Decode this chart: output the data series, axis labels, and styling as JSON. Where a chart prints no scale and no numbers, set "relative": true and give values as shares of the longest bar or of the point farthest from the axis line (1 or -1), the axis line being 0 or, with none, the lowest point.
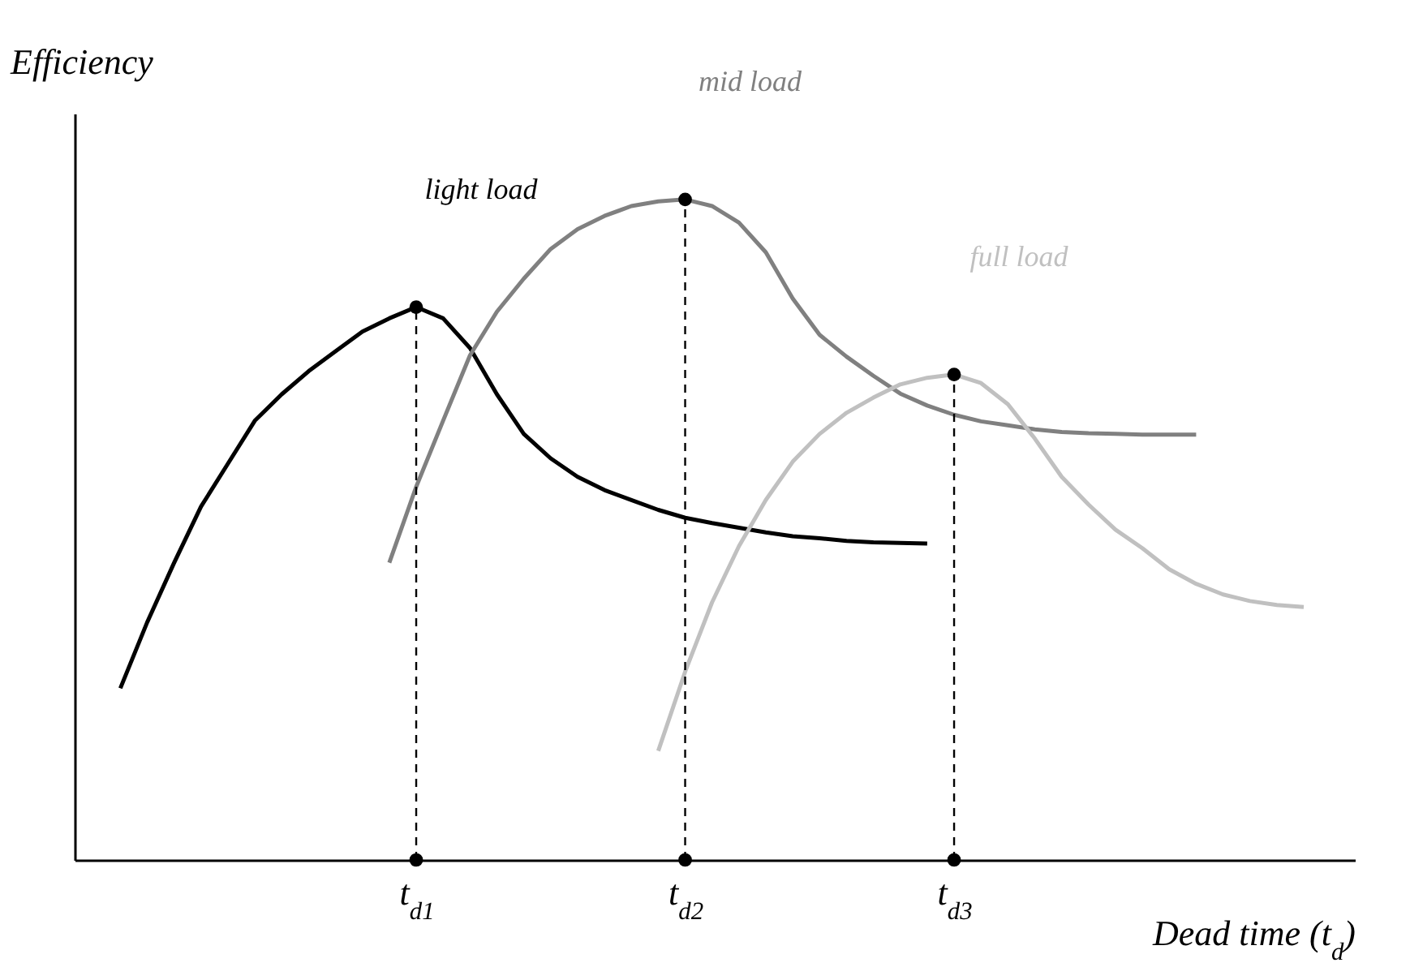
{
  "chart_data": {
    "type": "line",
    "relative": true,
    "xlabel": "Dead time (t$_{d}$)",
    "ylabel": "Efficiency",
    "categories": [
      null,
      null,
      null,
      null,
      null,
      null,
      null,
      null,
      null,
      null,
      null,
      null,
      "t$_{d1}$",
      null,
      null,
      null,
      null,
      null,
      null,
      null,
      null,
      null,
      "t$_{d2}$",
      null,
      null,
      null,
      null,
      null,
      null,
      null,
      null,
      null,
      "t$_{d3}$",
      null,
      null,
      null,
      null,
      null,
      null,
      null,
      null,
      null,
      null,
      null,
      null,
      null
    ],
    "grid": false,
    "legend": false,
    "marker": "none",
    "line_style": "solid",
    "series": [
      {
        "name": "light load",
        "color": "#000000",
        "values": [
          null,
          0.26,
          0.36,
          0.45,
          0.535,
          0.6,
          0.665,
          0.705,
          0.74,
          0.77,
          0.8,
          0.82,
          0.837,
          0.82,
          0.775,
          0.705,
          0.645,
          0.608,
          0.58,
          0.56,
          0.545,
          0.53,
          0.518,
          0.51,
          0.503,
          0.496,
          0.49,
          0.487,
          0.483,
          0.481,
          0.48,
          0.479,
          null,
          null,
          null,
          null,
          null,
          null,
          null,
          null,
          null,
          null,
          null,
          null,
          null,
          null
        ]
      },
      {
        "name": "mid load",
        "color": "#808080",
        "values": [
          null,
          null,
          null,
          null,
          null,
          null,
          null,
          null,
          null,
          null,
          null,
          0.45,
          0.565,
          0.665,
          0.764,
          0.83,
          0.88,
          0.925,
          0.955,
          0.975,
          0.99,
          0.997,
          1,
          0.99,
          0.965,
          0.92,
          0.85,
          0.795,
          0.762,
          0.733,
          0.706,
          0.688,
          0.674,
          0.664,
          0.658,
          0.652,
          0.648,
          0.646,
          0.645,
          0.644,
          0.644,
          0.644,
          null,
          null,
          null,
          null
        ]
      },
      {
        "name": "full load",
        "color": "#c0c0c0",
        "values": [
          null,
          null,
          null,
          null,
          null,
          null,
          null,
          null,
          null,
          null,
          null,
          null,
          null,
          null,
          null,
          null,
          null,
          null,
          null,
          null,
          null,
          0.165,
          0.285,
          0.39,
          0.475,
          0.545,
          0.603,
          0.645,
          0.677,
          0.7,
          0.72,
          0.73,
          0.735,
          0.722,
          0.69,
          0.638,
          0.58,
          0.538,
          0.5,
          0.472,
          0.44,
          0.418,
          0.402,
          0.392,
          0.386,
          0.383
        ]
      },
      {
        "type": "scatter",
        "color": "#000000",
        "marker": "circle",
        "values": [
          null,
          null,
          null,
          null,
          null,
          null,
          null,
          null,
          null,
          null,
          null,
          null,
          0,
          null,
          null,
          null,
          null,
          null,
          null,
          null,
          null,
          null,
          0,
          null,
          null,
          null,
          null,
          null,
          null,
          null,
          null,
          null,
          0,
          null,
          null,
          null,
          null,
          null,
          null,
          null,
          null,
          null,
          null,
          null,
          null,
          null
        ]
      },
      {
        "type": "scatter",
        "color": "#000000",
        "marker": "circle",
        "values": [
          null,
          null,
          null,
          null,
          null,
          null,
          null,
          null,
          null,
          null,
          null,
          null,
          0.837,
          null,
          null,
          null,
          null,
          null,
          null,
          null,
          null,
          null,
          1,
          null,
          null,
          null,
          null,
          null,
          null,
          null,
          null,
          null,
          0.735,
          null,
          null,
          null,
          null,
          null,
          null,
          null,
          null,
          null,
          null,
          null,
          null,
          null
        ]
      }
    ],
    "ref_lines": [
      {
        "axis": "x",
        "value": "t$_{d1}$",
        "line_style": "dashed"
      },
      {
        "axis": "x",
        "value": "t$_{d2}$",
        "line_style": "dashed"
      },
      {
        "axis": "x",
        "value": "t$_{d3}$",
        "line_style": "dashed"
      }
    ]
  }
}
